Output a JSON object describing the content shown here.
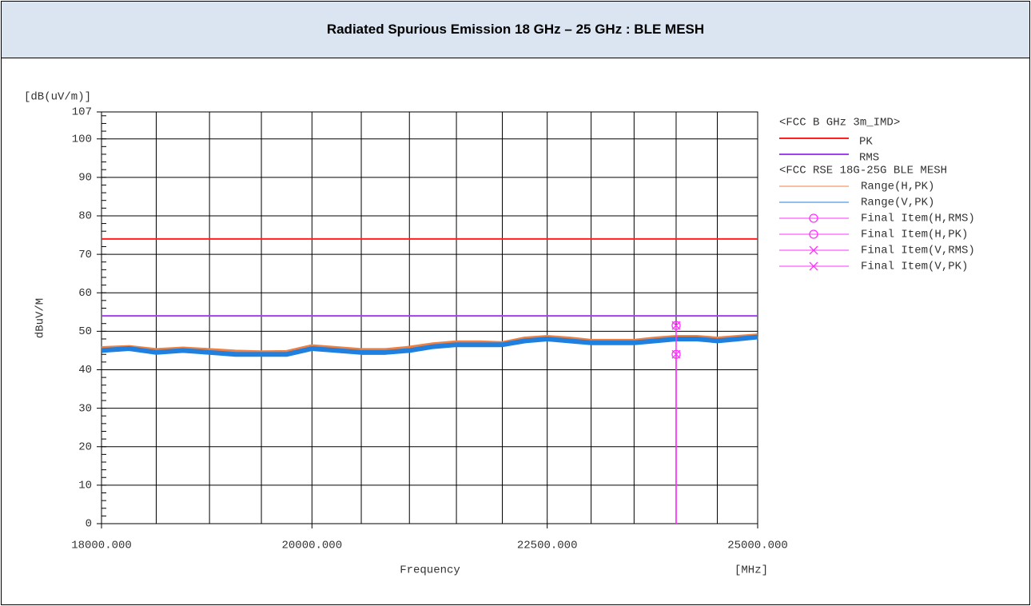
{
  "title": "Radiated Spurious Emission 18 GHz – 25 GHz : BLE MESH",
  "chart_data": {
    "type": "line",
    "y_unit": "[dB(uV/m)]",
    "y_label": "dBuV/M",
    "x_label": "Frequency",
    "x_unit": "[MHz]",
    "xscale": "log",
    "xlim": [
      18000,
      25000
    ],
    "xticks": [
      {
        "value": 18000,
        "label": "18000.000"
      },
      {
        "value": 20000,
        "label": "20000.000"
      },
      {
        "value": 22500,
        "label": "22500.000"
      },
      {
        "value": 25000,
        "label": "25000.000"
      }
    ],
    "xgrid": [
      18500,
      19000,
      19500,
      20000,
      20500,
      21000,
      21500,
      22000,
      22500,
      23000,
      23500,
      24000,
      24500
    ],
    "ylim": [
      0,
      107
    ],
    "yticks": [
      0,
      10,
      20,
      30,
      40,
      50,
      60,
      70,
      80,
      90,
      100,
      107
    ],
    "yminor_step": 2,
    "grid": true,
    "groups": [
      {
        "title": "<FCC B GHz 3m_IMD>",
        "series": [
          {
            "name": "PK",
            "color": "#ff2020",
            "style": "line",
            "x": [
              18000,
              25000
            ],
            "values": [
              74,
              74
            ]
          },
          {
            "name": "RMS",
            "color": "#a040f0",
            "style": "line",
            "x": [
              18000,
              25000
            ],
            "values": [
              54,
              54
            ]
          }
        ]
      },
      {
        "title": "<FCC RSE 18G-25G BLE MESH",
        "series": [
          {
            "name": "Range(H,PK)",
            "color": "#f08040",
            "style": "trace",
            "x": [
              18000,
              18250,
              18500,
              18750,
              19000,
              19250,
              19500,
              19750,
              20000,
              20250,
              20500,
              20750,
              21000,
              21250,
              21500,
              21750,
              22000,
              22250,
              22500,
              22750,
              23000,
              23250,
              23500,
              23750,
              24000,
              24250,
              24500,
              24750,
              25000
            ],
            "values": [
              45.5,
              45.8,
              45,
              45.4,
              45,
              44.6,
              44.4,
              44.5,
              46,
              45.5,
              45,
              45,
              45.6,
              46.5,
              47,
              47,
              46.8,
              48,
              48.4,
              48,
              47.4,
              47.4,
              47.4,
              48,
              48.4,
              48.4,
              48,
              48.4,
              48.8
            ]
          },
          {
            "name": "Range(V,PK)",
            "color": "#2080e0",
            "style": "trace",
            "x": [
              18000,
              18250,
              18500,
              18750,
              19000,
              19250,
              19500,
              19750,
              20000,
              20250,
              20500,
              20750,
              21000,
              21250,
              21500,
              21750,
              22000,
              22250,
              22500,
              22750,
              23000,
              23250,
              23500,
              23750,
              24000,
              24250,
              24500,
              24750,
              25000
            ],
            "values": [
              45,
              45.5,
              44.5,
              45,
              44.5,
              44,
              44,
              44,
              45.5,
              45,
              44.5,
              44.5,
              45,
              46,
              46.5,
              46.5,
              46.5,
              47.5,
              48,
              47.5,
              47,
              47,
              47,
              47.5,
              48,
              48,
              47.5,
              48,
              48.5
            ]
          },
          {
            "name": "Final Item(H,RMS)",
            "color": "#ff30ff",
            "style": "o",
            "x": [
              24000
            ],
            "values": [
              44
            ]
          },
          {
            "name": "Final Item(H,PK)",
            "color": "#ff30ff",
            "style": "o",
            "x": [
              24000
            ],
            "values": [
              51.5
            ]
          },
          {
            "name": "Final Item(V,RMS)",
            "color": "#ff30ff",
            "style": "x",
            "x": [
              24000
            ],
            "values": [
              44
            ]
          },
          {
            "name": "Final Item(V,PK)",
            "color": "#ff30ff",
            "style": "x",
            "x": [
              24000
            ],
            "values": [
              51.5
            ]
          }
        ]
      }
    ]
  }
}
